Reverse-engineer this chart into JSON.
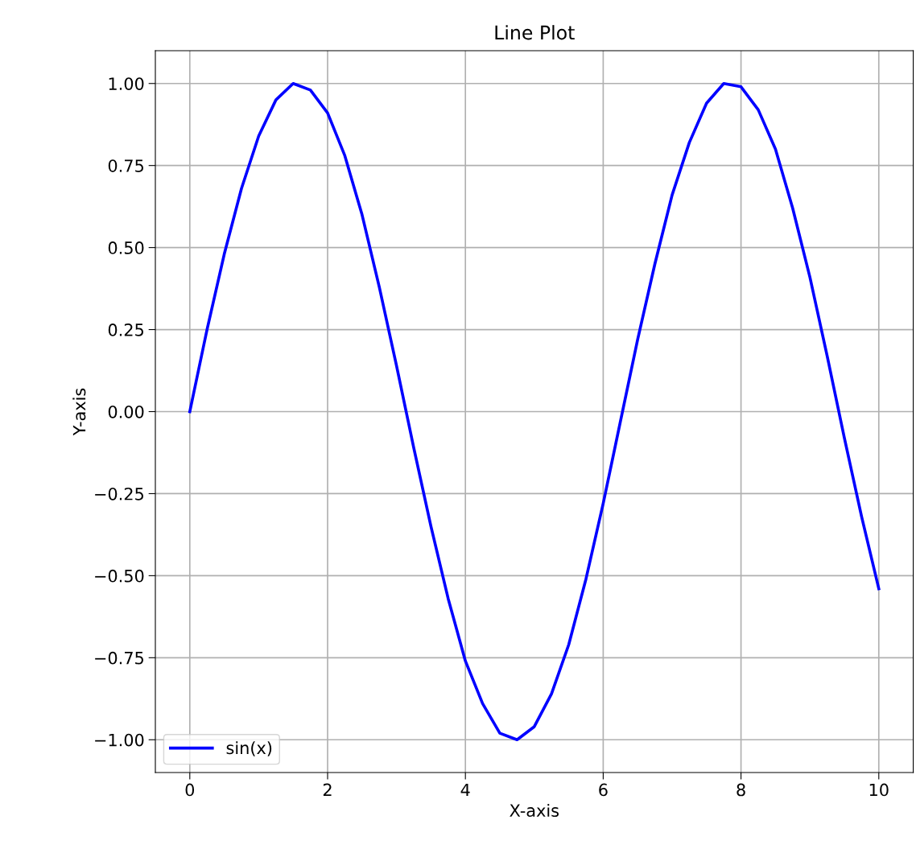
{
  "chart_data": {
    "type": "line",
    "title": "Line Plot",
    "xlabel": "X-axis",
    "ylabel": "Y-axis",
    "series": [
      {
        "name": "sin(x)",
        "color": "#0000ff",
        "x": [
          0,
          0.25,
          0.5,
          0.75,
          1,
          1.25,
          1.5,
          1.75,
          2,
          2.25,
          2.5,
          2.75,
          3,
          3.25,
          3.5,
          3.75,
          4,
          4.25,
          4.5,
          4.75,
          5,
          5.25,
          5.5,
          5.75,
          6,
          6.25,
          6.5,
          6.75,
          7,
          7.25,
          7.5,
          7.75,
          8,
          8.25,
          8.5,
          8.75,
          9,
          9.25,
          9.5,
          9.75,
          10
        ],
        "values": [
          0,
          0.25,
          0.48,
          0.68,
          0.84,
          0.95,
          1.0,
          0.98,
          0.91,
          0.78,
          0.6,
          0.38,
          0.14,
          -0.11,
          -0.35,
          -0.57,
          -0.76,
          -0.89,
          -0.98,
          -1.0,
          -0.96,
          -0.86,
          -0.71,
          -0.51,
          -0.28,
          -0.03,
          0.22,
          0.45,
          0.66,
          0.82,
          0.94,
          1.0,
          0.99,
          0.92,
          0.8,
          0.62,
          0.41,
          0.17,
          -0.08,
          -0.32,
          -0.54
        ]
      }
    ],
    "xlim": [
      -0.5,
      10.5
    ],
    "xticks": [
      0,
      2,
      4,
      6,
      8,
      10
    ],
    "ylim": [
      -1.1,
      1.1
    ],
    "yticks": [
      {
        "value": -1,
        "label": "−1.00"
      },
      {
        "value": -0.75,
        "label": "−0.75"
      },
      {
        "value": -0.5,
        "label": "−0.50"
      },
      {
        "value": -0.25,
        "label": "−0.25"
      },
      {
        "value": 0,
        "label": "0.00"
      },
      {
        "value": 0.25,
        "label": "0.25"
      },
      {
        "value": 0.5,
        "label": "0.50"
      },
      {
        "value": 0.75,
        "label": "0.75"
      },
      {
        "value": 1,
        "label": "1.00"
      }
    ],
    "grid": true,
    "legend": "bottom left",
    "line_style": "solid"
  }
}
